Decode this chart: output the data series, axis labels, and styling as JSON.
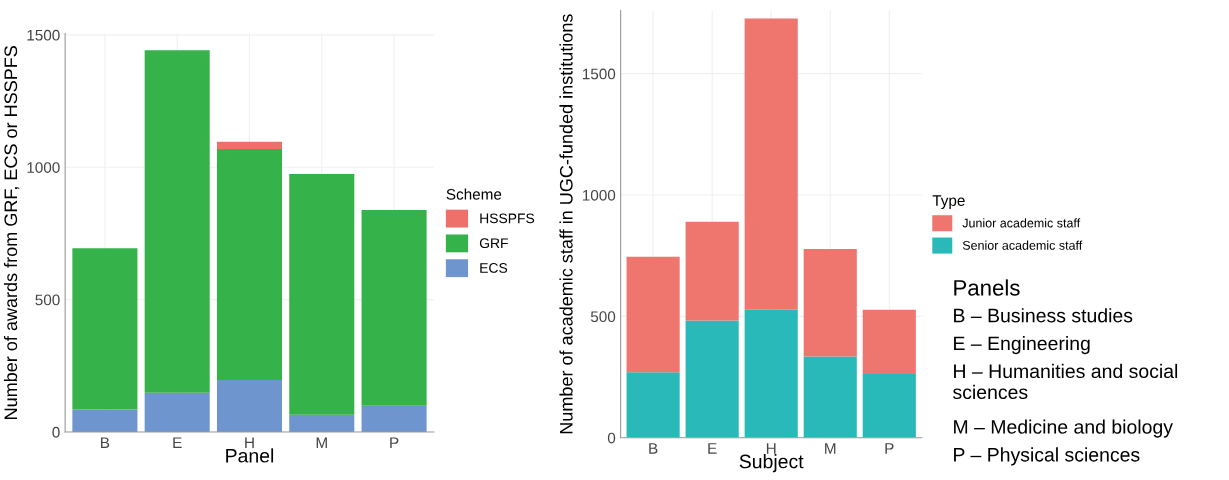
{
  "chart_data": [
    {
      "type": "bar",
      "stacked": true,
      "xlabel": "Panel",
      "ylabel": "Number of awards from GRF, ECS or HSSPFS",
      "legend_title": "Scheme",
      "legend": "right",
      "grid": true,
      "categories": [
        "B",
        "E",
        "H",
        "M",
        "P"
      ],
      "series": [
        {
          "name": "ECS",
          "color": "#6f95cf",
          "values": [
            85,
            148,
            196,
            65,
            99
          ]
        },
        {
          "name": "GRF",
          "color": "#36b24a",
          "values": [
            609,
            1294,
            873,
            910,
            740
          ]
        },
        {
          "name": "HSSPFS",
          "color": "#ef6f6a",
          "values": [
            0,
            0,
            27,
            0,
            0
          ]
        }
      ],
      "ylim": [
        0,
        1505
      ],
      "yticks": [
        0,
        500,
        1000,
        1500
      ]
    },
    {
      "type": "bar",
      "stacked": true,
      "xlabel": "Subject",
      "ylabel": "Number of academic staff in UGC-funded institutions",
      "legend_title": "Type",
      "legend": "right",
      "grid": true,
      "categories": [
        "B",
        "E",
        "H",
        "M",
        "P"
      ],
      "series": [
        {
          "name": "Senior academic staff",
          "color": "#2ab9b9",
          "values": [
            270,
            483,
            527,
            335,
            263
          ]
        },
        {
          "name": "Junior academic staff",
          "color": "#ee766f",
          "values": [
            476,
            407,
            1200,
            443,
            264
          ]
        }
      ],
      "ylim": [
        0,
        1760
      ],
      "yticks": [
        0,
        500,
        1000,
        1500
      ]
    },
    {
      "type": "other",
      "title": "Panels",
      "annotations": [
        "B – Business studies",
        "E – Engineering",
        "H – Humanities and social sciences",
        "M – Medicine and biology",
        "P – Physical sciences"
      ]
    }
  ]
}
